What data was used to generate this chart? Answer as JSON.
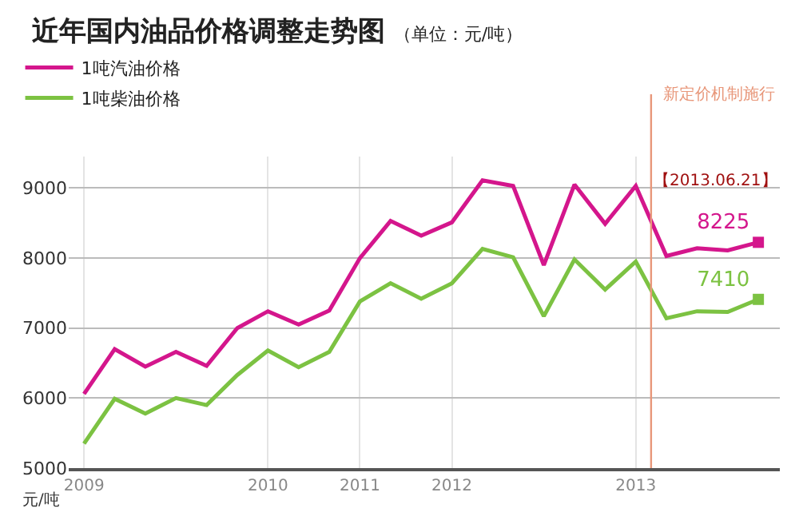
{
  "chart_data": {
    "type": "line",
    "title": "近年国内油品价格调整走势图",
    "subtitle": "（单位：元/吨）",
    "ylabel": "元/吨",
    "categories": [
      "2009",
      null,
      null,
      null,
      null,
      null,
      "2010",
      null,
      null,
      "2011",
      null,
      null,
      "2012",
      null,
      null,
      null,
      null,
      null,
      "2013",
      null,
      null,
      null,
      null
    ],
    "series": [
      {
        "name": "1吨汽油价格",
        "color": "#d4168c",
        "values": [
          6060,
          6700,
          6450,
          6660,
          6460,
          7000,
          7240,
          7050,
          7250,
          8000,
          8530,
          8320,
          8510,
          9110,
          9030,
          7900,
          9050,
          8490,
          9030,
          8030,
          8140,
          8110,
          8225
        ],
        "value_labels": [
          null,
          null,
          null,
          null,
          null,
          null,
          null,
          null,
          null,
          null,
          null,
          null,
          null,
          null,
          null,
          null,
          null,
          null,
          null,
          null,
          null,
          null,
          "8225"
        ]
      },
      {
        "name": "1吨柴油价格",
        "color": "#7cc242",
        "values": [
          5350,
          5990,
          5780,
          6000,
          5900,
          6330,
          6680,
          6440,
          6660,
          7380,
          7640,
          7420,
          7640,
          8130,
          8010,
          7170,
          7980,
          7550,
          7950,
          7140,
          7240,
          7230,
          7410
        ],
        "value_labels": [
          null,
          null,
          null,
          null,
          null,
          null,
          null,
          null,
          null,
          null,
          null,
          null,
          null,
          null,
          null,
          null,
          null,
          null,
          null,
          null,
          null,
          null,
          "7410"
        ]
      }
    ],
    "ylim": [
      5000,
      9450
    ],
    "yticks": [
      5000,
      6000,
      7000,
      8000,
      9000
    ],
    "grid": true,
    "legend": "top left",
    "line_style": "solid",
    "annotations": [
      "新定价机制施行",
      "【2013.06.21】"
    ]
  }
}
